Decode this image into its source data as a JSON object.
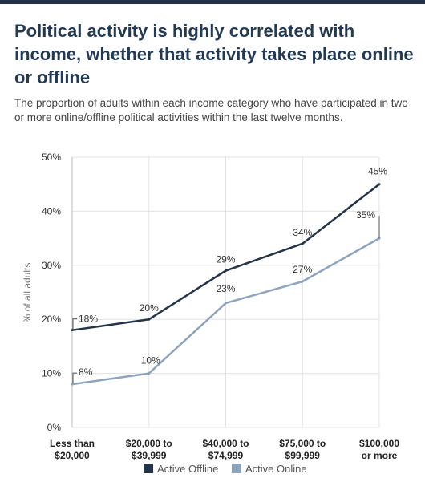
{
  "header": {
    "title": "Political activity is highly correlated with income, whether that activity takes place online or offline",
    "subtitle": "The proportion of adults within each income category who have participated in two or more online/offline political activities within the last twelve months."
  },
  "chart_data": {
    "type": "line",
    "ylabel": "% of all adults",
    "xlabel": "",
    "ylim": [
      0,
      50
    ],
    "yticks": [
      "0%",
      "10%",
      "20%",
      "30%",
      "40%",
      "50%"
    ],
    "categories": [
      [
        "Less than",
        "$20,000"
      ],
      [
        "$20,000 to",
        "$39,999"
      ],
      [
        "$40,000 to",
        "$74,999"
      ],
      [
        "$75,000 to",
        "$99,999"
      ],
      [
        "$100,000",
        "or more"
      ]
    ],
    "series": [
      {
        "name": "Active Offline",
        "color": "#243447",
        "values": [
          18,
          20,
          29,
          34,
          45
        ],
        "labels": [
          "18%",
          "20%",
          "29%",
          "34%",
          "45%"
        ]
      },
      {
        "name": "Active Online",
        "color": "#8ea4bd",
        "values": [
          8,
          10,
          23,
          27,
          35
        ],
        "labels": [
          "8%",
          "10%",
          "23%",
          "27%",
          "35%"
        ]
      }
    ],
    "grid": true,
    "legend_position": "bottom"
  }
}
